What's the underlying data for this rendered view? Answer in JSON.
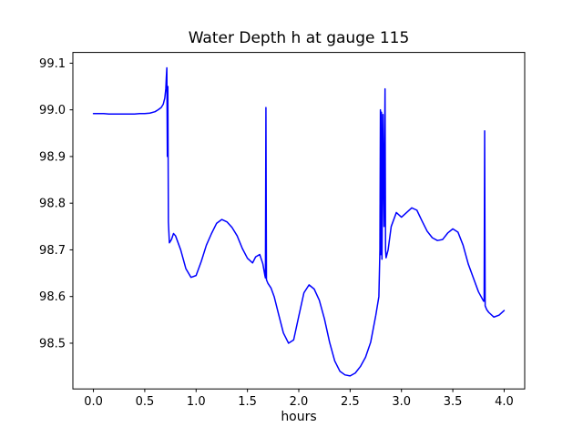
{
  "chart_data": {
    "type": "line",
    "title": "Water Depth h at gauge 115",
    "xlabel": "hours",
    "ylabel": "",
    "line_color": "#0000ff",
    "axes_color": "#000000",
    "background_color": "#ffffff",
    "legend": "none",
    "grid": false,
    "xlim": [
      -0.2,
      4.2
    ],
    "ylim": [
      98.402,
      99.123
    ],
    "x_ticks": [
      0.0,
      0.5,
      1.0,
      1.5,
      2.0,
      2.5,
      3.0,
      3.5,
      4.0
    ],
    "y_ticks": [
      98.5,
      98.6,
      98.7,
      98.8,
      98.9,
      99.0,
      99.1
    ],
    "series_name": "water-depth-h",
    "x": [
      0.0,
      0.05,
      0.1,
      0.15,
      0.2,
      0.25,
      0.3,
      0.35,
      0.4,
      0.45,
      0.5,
      0.55,
      0.6,
      0.63,
      0.66,
      0.68,
      0.695,
      0.705,
      0.71,
      0.715,
      0.72,
      0.725,
      0.73,
      0.74,
      0.76,
      0.78,
      0.8,
      0.85,
      0.9,
      0.95,
      1.0,
      1.05,
      1.1,
      1.15,
      1.2,
      1.25,
      1.3,
      1.35,
      1.4,
      1.45,
      1.5,
      1.55,
      1.58,
      1.62,
      1.65,
      1.67,
      1.675,
      1.68,
      1.685,
      1.7,
      1.73,
      1.76,
      1.8,
      1.85,
      1.9,
      1.95,
      2.0,
      2.05,
      2.1,
      2.15,
      2.2,
      2.25,
      2.3,
      2.35,
      2.4,
      2.45,
      2.5,
      2.55,
      2.6,
      2.65,
      2.7,
      2.75,
      2.78,
      2.79,
      2.795,
      2.8,
      2.805,
      2.81,
      2.82,
      2.83,
      2.84,
      2.845,
      2.85,
      2.87,
      2.9,
      2.95,
      3.0,
      3.05,
      3.1,
      3.15,
      3.2,
      3.25,
      3.3,
      3.35,
      3.4,
      3.45,
      3.5,
      3.55,
      3.6,
      3.65,
      3.7,
      3.75,
      3.8,
      3.805,
      3.81,
      3.815,
      3.83,
      3.85,
      3.9,
      3.95,
      4.0
    ],
    "y": [
      98.992,
      98.992,
      98.992,
      98.991,
      98.991,
      98.991,
      98.991,
      98.991,
      98.991,
      98.992,
      98.992,
      98.993,
      98.996,
      99.0,
      99.005,
      99.012,
      99.025,
      99.045,
      99.07,
      99.09,
      98.9,
      99.05,
      98.76,
      98.715,
      98.722,
      98.735,
      98.73,
      98.7,
      98.66,
      98.641,
      98.645,
      98.675,
      98.71,
      98.735,
      98.757,
      98.765,
      98.76,
      98.748,
      98.73,
      98.703,
      98.682,
      98.672,
      98.685,
      98.69,
      98.67,
      98.645,
      98.64,
      99.005,
      98.636,
      98.628,
      98.618,
      98.6,
      98.565,
      98.522,
      98.5,
      98.507,
      98.558,
      98.608,
      98.625,
      98.616,
      98.592,
      98.552,
      98.502,
      98.462,
      98.44,
      98.432,
      98.43,
      98.436,
      98.45,
      98.47,
      98.502,
      98.56,
      98.6,
      98.7,
      99.0,
      98.69,
      98.995,
      98.68,
      98.99,
      98.75,
      99.045,
      98.7,
      98.683,
      98.7,
      98.75,
      98.78,
      98.77,
      98.78,
      98.79,
      98.785,
      98.762,
      98.74,
      98.726,
      98.72,
      98.722,
      98.736,
      98.745,
      98.738,
      98.71,
      98.67,
      98.64,
      98.61,
      98.59,
      98.59,
      98.955,
      98.58,
      98.572,
      98.566,
      98.556,
      98.56,
      98.57
    ]
  }
}
